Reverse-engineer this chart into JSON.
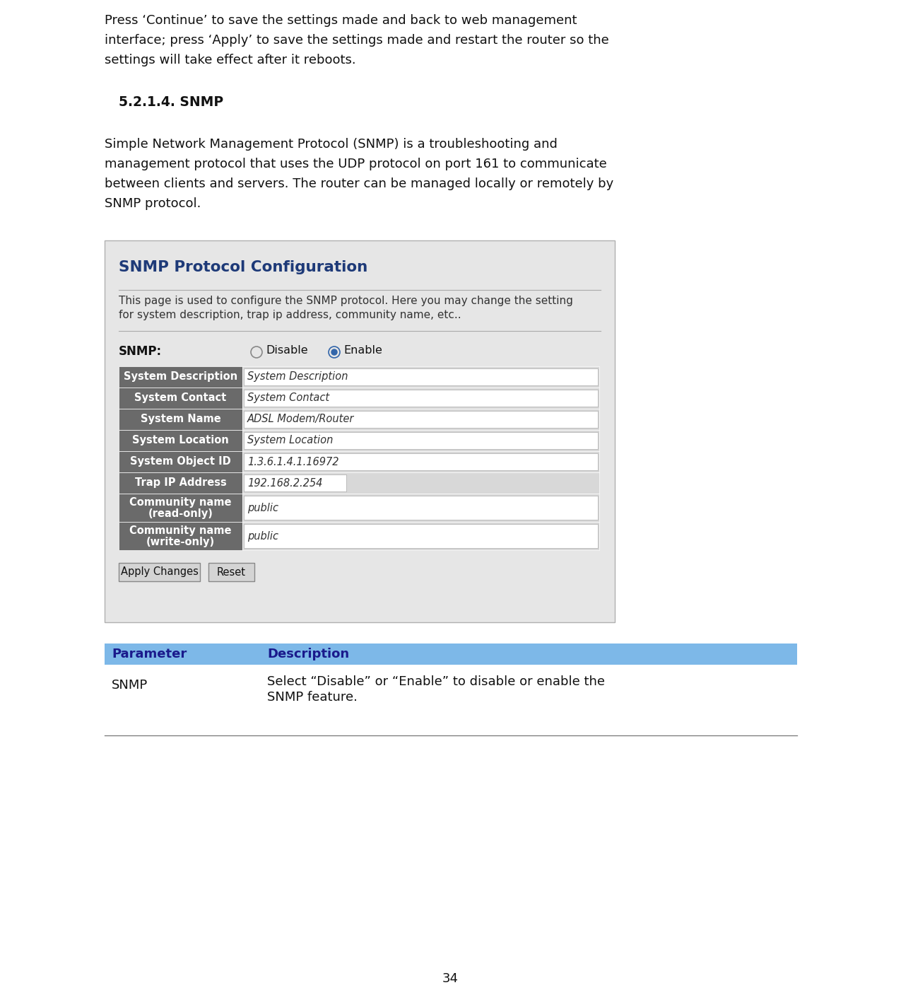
{
  "bg_color": "#ffffff",
  "text_color": "#111111",
  "page_number": "34",
  "intro_lines": [
    "Press ‘Continue’ to save the settings made and back to web management",
    "interface; press ‘Apply’ to save the settings made and restart the router so the",
    "settings will take effect after it reboots."
  ],
  "section_title": "5.2.1.4. SNMP",
  "body_lines": [
    "Simple Network Management Protocol (SNMP) is a troubleshooting and",
    "management protocol that uses the UDP protocol on port 161 to communicate",
    "between clients and servers. The router can be managed locally or remotely by",
    "SNMP protocol."
  ],
  "screenshot_title": "SNMP Protocol Configuration",
  "screenshot_title_color": "#1e3a78",
  "screenshot_bg": "#e6e6e6",
  "screenshot_border": "#b0b0b0",
  "screenshot_desc_lines": [
    "This page is used to configure the SNMP protocol. Here you may change the setting",
    "for system description, trap ip address, community name, etc.."
  ],
  "table_header_bg": "#7db8e8",
  "table_header_text": "#1a1a8c",
  "table_row_param": "SNMP",
  "table_row_desc1": "Select “Disable” or “Enable” to disable or enable the",
  "table_row_desc2": "SNMP feature.",
  "form_fields": [
    {
      "label": "System Description",
      "value": "System Description",
      "two_line": false
    },
    {
      "label": "System Contact",
      "value": "System Contact",
      "two_line": false
    },
    {
      "label": "System Name",
      "value": "ADSL Modem/Router",
      "two_line": false
    },
    {
      "label": "System Location",
      "value": "System Location",
      "two_line": false
    },
    {
      "label": "System Object ID",
      "value": "1.3.6.1.4.1.16972",
      "two_line": false
    },
    {
      "label": "Trap IP Address",
      "value": "192.168.2.254",
      "two_line": false,
      "short_input": true
    },
    {
      "label1": "Community name",
      "label2": "(read-only)",
      "value": "public",
      "two_line": true
    },
    {
      "label1": "Community name",
      "label2": "(write-only)",
      "value": "public",
      "two_line": true
    }
  ],
  "label_bg": "#6a6a6a",
  "label_text_color": "#ffffff",
  "field_bg": "#d8d8d8",
  "input_bg": "#ffffff",
  "divider_color": "#aaaaaa",
  "btn_bg": "#d4d4d4",
  "btn_border": "#888888"
}
